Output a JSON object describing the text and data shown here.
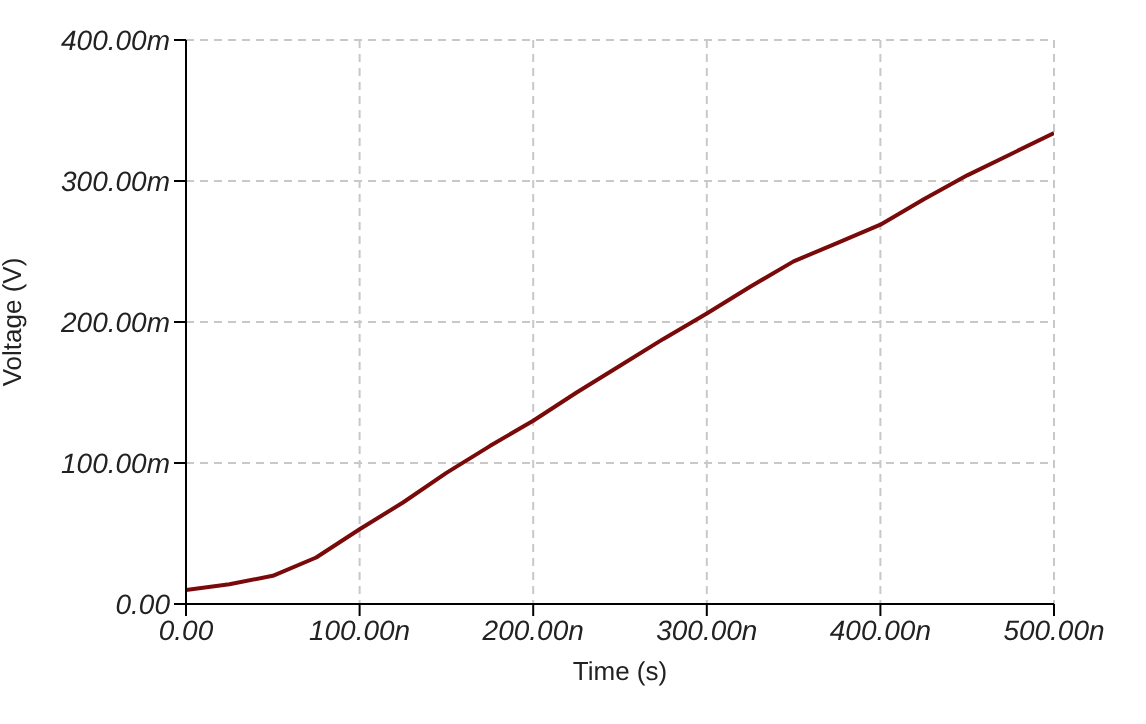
{
  "chart_data": {
    "type": "line",
    "xlabel": "Time (s)",
    "ylabel": "Voltage (V)",
    "x": [
      0,
      25,
      50,
      75,
      100,
      125,
      150,
      175,
      200,
      225,
      250,
      275,
      300,
      325,
      350,
      375,
      400,
      425,
      450,
      475,
      500
    ],
    "series": [
      {
        "color": "#7a0a0a",
        "values": [
          10,
          14,
          20,
          33,
          53,
          72,
          93,
          112,
          130,
          150,
          169,
          188,
          206,
          225,
          243,
          256,
          269,
          287,
          304,
          319,
          334
        ]
      }
    ],
    "xlim": [
      0,
      500
    ],
    "xticks": [
      {
        "value": 0,
        "label": "0.00"
      },
      {
        "value": 100,
        "label": "100.00n"
      },
      {
        "value": 200,
        "label": "200.00n"
      },
      {
        "value": 300,
        "label": "300.00n"
      },
      {
        "value": 400,
        "label": "400.00n"
      },
      {
        "value": 500,
        "label": "500.00n"
      }
    ],
    "ylim": [
      0,
      400
    ],
    "yticks": [
      {
        "value": 0,
        "label": "0.00"
      },
      {
        "value": 100,
        "label": "100.00m"
      },
      {
        "value": 200,
        "label": "200.00m"
      },
      {
        "value": 300,
        "label": "300.00m"
      },
      {
        "value": 400,
        "label": "400.00m"
      }
    ],
    "grid": true,
    "marker": "none",
    "line_style": "solid",
    "legend": false
  }
}
